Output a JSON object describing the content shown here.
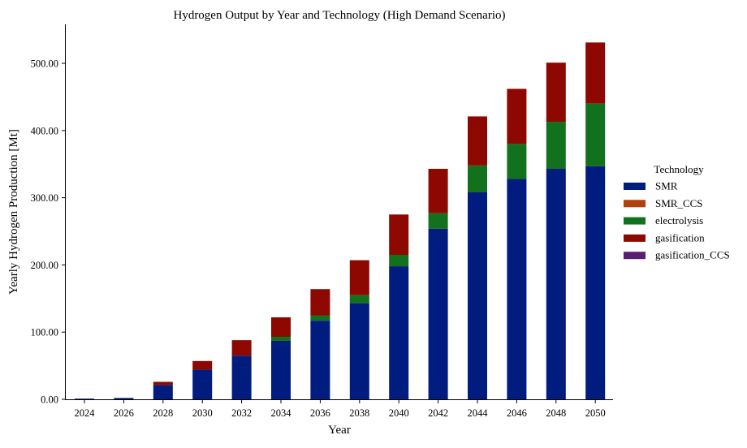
{
  "chart_data": {
    "type": "bar",
    "stacked": true,
    "title": "Hydrogen Output by Year and Technology (High Demand Scenario)",
    "xlabel": "Year",
    "ylabel": "Yearly Hydrogen Production [Mt]",
    "ylim": [
      0,
      558
    ],
    "yticks": [
      "0.00",
      "100.00",
      "200.00",
      "300.00",
      "400.00",
      "500.00"
    ],
    "ytick_values": [
      0,
      100,
      200,
      300,
      400,
      500
    ],
    "categories": [
      "2024",
      "2026",
      "2028",
      "2030",
      "2032",
      "2034",
      "2036",
      "2038",
      "2040",
      "2042",
      "2044",
      "2046",
      "2048",
      "2050"
    ],
    "legend_title": "Technology",
    "legend_position": "right",
    "series": [
      {
        "name": "SMR",
        "color": "#001c7f",
        "values": [
          1,
          2,
          21,
          44,
          65,
          87,
          117,
          143,
          198,
          254,
          308,
          328,
          343,
          347
        ]
      },
      {
        "name": "SMR_CCS",
        "color": "#b1400d",
        "values": [
          0,
          0,
          0,
          0,
          0,
          0,
          0,
          0,
          0,
          0,
          0,
          0,
          0,
          0
        ]
      },
      {
        "name": "electrolysis",
        "color": "#12711c",
        "values": [
          0,
          0,
          0,
          0,
          0,
          6,
          8,
          12,
          17,
          23,
          40,
          52,
          70,
          93
        ]
      },
      {
        "name": "gasification",
        "color": "#8c0800",
        "values": [
          0,
          0,
          5,
          13,
          23,
          29,
          39,
          52,
          60,
          66,
          73,
          82,
          88,
          91
        ]
      },
      {
        "name": "gasification_CCS",
        "color": "#591e71",
        "values": [
          0,
          0,
          0,
          0,
          0,
          0,
          0,
          0,
          0,
          0,
          0,
          0,
          0,
          0
        ]
      }
    ]
  }
}
